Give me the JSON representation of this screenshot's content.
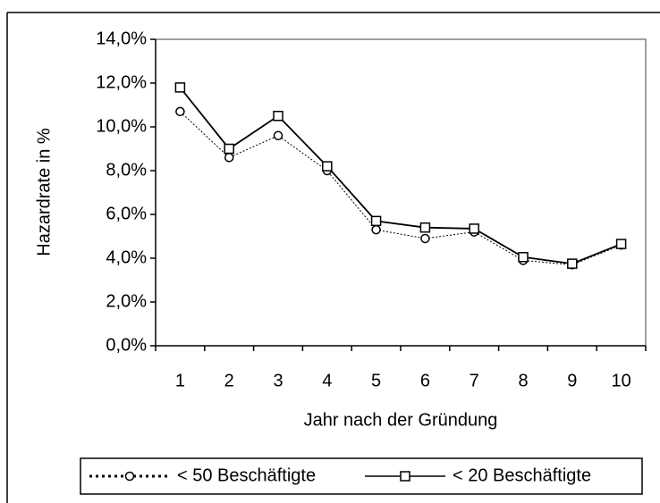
{
  "chart_data": {
    "type": "line",
    "categories": [
      "1",
      "2",
      "3",
      "4",
      "5",
      "6",
      "7",
      "8",
      "9",
      "10"
    ],
    "series": [
      {
        "name": "< 50 Beschäftigte",
        "color": "#000000",
        "dash": "dotted",
        "marker": "circle",
        "values": [
          10.7,
          8.6,
          9.6,
          8.0,
          5.3,
          4.9,
          5.2,
          3.9,
          3.7,
          4.6
        ]
      },
      {
        "name": "< 20 Beschäftigte",
        "color": "#000000",
        "dash": "solid",
        "marker": "square",
        "values": [
          11.8,
          9.0,
          10.5,
          8.2,
          5.7,
          5.4,
          5.35,
          4.05,
          3.75,
          4.65
        ]
      }
    ],
    "ylabel": "Hazardrate in %",
    "xlabel": "Jahr nach der Gründung",
    "ylim": [
      0,
      14
    ],
    "yticks": [
      {
        "value": 0,
        "label": "0,0%"
      },
      {
        "value": 2,
        "label": "2,0%"
      },
      {
        "value": 4,
        "label": "4,0%"
      },
      {
        "value": 6,
        "label": "6,0%"
      },
      {
        "value": 8,
        "label": "8,0%"
      },
      {
        "value": 10,
        "label": "10,0%"
      },
      {
        "value": 12,
        "label": "12,0%"
      },
      {
        "value": 14,
        "label": "14,0%"
      }
    ],
    "legend": "bottom"
  }
}
